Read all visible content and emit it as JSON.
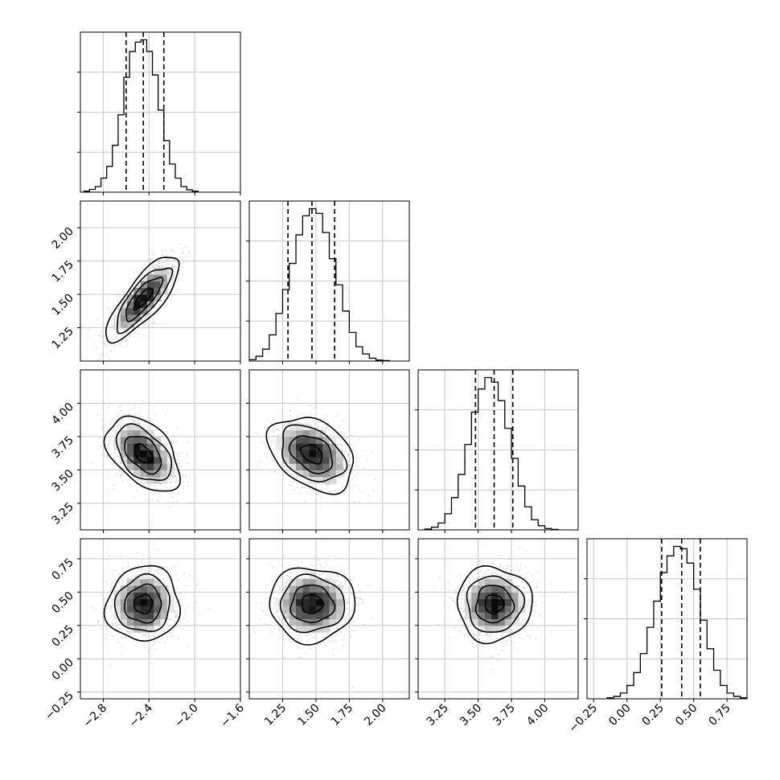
{
  "chart_data": {
    "type": "corner",
    "parameters": [
      {
        "range": [
          -3.0,
          -1.6
        ],
        "ticks": [
          -2.8,
          -2.4,
          -2.0,
          -1.6
        ],
        "tick_labels": [
          "−2.8",
          "−2.4",
          "−2.0",
          "−1.6"
        ],
        "quantiles": [
          -2.6,
          -2.45,
          -2.27
        ],
        "hist": {
          "edges": [
            -2.97,
            -2.92,
            -2.87,
            -2.82,
            -2.77,
            -2.72,
            -2.67,
            -2.62,
            -2.57,
            -2.52,
            -2.47,
            -2.42,
            -2.37,
            -2.32,
            -2.27,
            -2.22,
            -2.17,
            -2.12,
            -2.07,
            -2.02,
            -1.97
          ],
          "counts": [
            2,
            6,
            12,
            30,
            55,
            100,
            165,
            245,
            300,
            320,
            325,
            300,
            250,
            175,
            110,
            60,
            30,
            12,
            5,
            2
          ]
        }
      },
      {
        "range": [
          1.0,
          2.2
        ],
        "ticks": [
          1.25,
          1.5,
          1.75,
          2.0
        ],
        "tick_labels": [
          "1.25",
          "1.50",
          "1.75",
          "2.00"
        ],
        "quantiles": [
          1.29,
          1.47,
          1.64
        ],
        "hist": {
          "edges": [
            1.0,
            1.05,
            1.1,
            1.15,
            1.2,
            1.25,
            1.3,
            1.35,
            1.4,
            1.45,
            1.5,
            1.55,
            1.6,
            1.65,
            1.7,
            1.75,
            1.8,
            1.85,
            1.9,
            1.95,
            2.0,
            2.05
          ],
          "counts": [
            3,
            10,
            25,
            55,
            100,
            150,
            205,
            265,
            305,
            320,
            310,
            270,
            215,
            160,
            105,
            60,
            30,
            15,
            6,
            2,
            1
          ]
        }
      },
      {
        "range": [
          3.05,
          4.25
        ],
        "ticks": [
          3.25,
          3.5,
          3.75,
          4.0
        ],
        "tick_labels": [
          "3.25",
          "3.50",
          "3.75",
          "4.00"
        ],
        "quantiles": [
          3.48,
          3.62,
          3.76
        ],
        "hist": {
          "edges": [
            3.1,
            3.15,
            3.2,
            3.25,
            3.3,
            3.35,
            3.4,
            3.45,
            3.5,
            3.55,
            3.6,
            3.65,
            3.7,
            3.75,
            3.8,
            3.85,
            3.9,
            3.95,
            4.0,
            4.05,
            4.1
          ],
          "counts": [
            2,
            6,
            15,
            35,
            70,
            120,
            185,
            255,
            305,
            330,
            320,
            280,
            220,
            155,
            95,
            50,
            22,
            9,
            3,
            1
          ]
        }
      },
      {
        "range": [
          -0.3,
          0.9
        ],
        "ticks": [
          -0.25,
          0.0,
          0.25,
          0.5,
          0.75
        ],
        "tick_labels": [
          "−0.25",
          "0.00",
          "0.25",
          "0.50",
          "0.75"
        ],
        "quantiles": [
          0.26,
          0.41,
          0.55
        ],
        "hist": {
          "edges": [
            -0.15,
            -0.1,
            -0.05,
            0.0,
            0.05,
            0.1,
            0.15,
            0.2,
            0.25,
            0.3,
            0.35,
            0.4,
            0.45,
            0.5,
            0.55,
            0.6,
            0.65,
            0.7,
            0.75,
            0.8,
            0.85,
            0.9
          ],
          "counts": [
            2,
            5,
            12,
            28,
            55,
            95,
            150,
            205,
            265,
            300,
            320,
            315,
            285,
            230,
            165,
            105,
            60,
            28,
            12,
            5,
            2
          ]
        }
      }
    ],
    "pairs": [
      {
        "x": 0,
        "y": 1,
        "mean": [
          -2.45,
          1.47
        ],
        "sd": [
          0.16,
          0.16
        ],
        "corr": 0.8
      },
      {
        "x": 0,
        "y": 2,
        "mean": [
          -2.45,
          3.62
        ],
        "sd": [
          0.16,
          0.14
        ],
        "corr": -0.45
      },
      {
        "x": 1,
        "y": 2,
        "mean": [
          1.47,
          3.62
        ],
        "sd": [
          0.16,
          0.14
        ],
        "corr": -0.35
      },
      {
        "x": 0,
        "y": 3,
        "mean": [
          -2.45,
          0.41
        ],
        "sd": [
          0.16,
          0.14
        ],
        "corr": 0.05
      },
      {
        "x": 1,
        "y": 3,
        "mean": [
          1.47,
          0.41
        ],
        "sd": [
          0.16,
          0.14
        ],
        "corr": 0.0
      },
      {
        "x": 2,
        "y": 3,
        "mean": [
          3.62,
          0.41
        ],
        "sd": [
          0.14,
          0.14
        ],
        "corr": 0.0
      }
    ],
    "contour_levels_sigma": [
      0.5,
      1.0,
      1.5,
      2.0
    ],
    "grid": true,
    "colors": {
      "ink": "#000000",
      "scatter": "#9a9a9a",
      "grid": "#c8c8c8",
      "background": "#ffffff"
    }
  }
}
